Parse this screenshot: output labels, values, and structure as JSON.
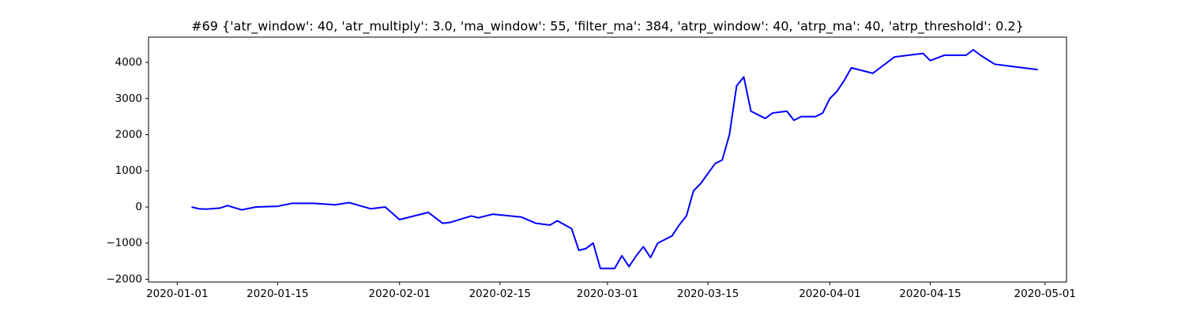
{
  "chart_data": {
    "type": "line",
    "title": "#69 {'atr_window': 40, 'atr_multiply': 3.0, 'ma_window': 55, 'filter_ma': 384, 'atrp_window': 40, 'atrp_ma': 40, 'atrp_threshold': 0.2}",
    "x": [
      "2020-01-03",
      "2020-01-04",
      "2020-01-05",
      "2020-01-07",
      "2020-01-08",
      "2020-01-10",
      "2020-01-12",
      "2020-01-15",
      "2020-01-17",
      "2020-01-20",
      "2020-01-23",
      "2020-01-25",
      "2020-01-28",
      "2020-01-30",
      "2020-02-01",
      "2020-02-04",
      "2020-02-05",
      "2020-02-07",
      "2020-02-08",
      "2020-02-11",
      "2020-02-12",
      "2020-02-14",
      "2020-02-18",
      "2020-02-20",
      "2020-02-22",
      "2020-02-23",
      "2020-02-25",
      "2020-02-26",
      "2020-02-27",
      "2020-02-28",
      "2020-02-29",
      "2020-03-02",
      "2020-03-03",
      "2020-03-04",
      "2020-03-05",
      "2020-03-06",
      "2020-03-07",
      "2020-03-08",
      "2020-03-10",
      "2020-03-11",
      "2020-03-12",
      "2020-03-13",
      "2020-03-14",
      "2020-03-16",
      "2020-03-17",
      "2020-03-18",
      "2020-03-19",
      "2020-03-20",
      "2020-03-21",
      "2020-03-23",
      "2020-03-24",
      "2020-03-26",
      "2020-03-27",
      "2020-03-28",
      "2020-03-30",
      "2020-03-31",
      "2020-04-01",
      "2020-04-02",
      "2020-04-03",
      "2020-04-04",
      "2020-04-07",
      "2020-04-10",
      "2020-04-14",
      "2020-04-15",
      "2020-04-17",
      "2020-04-20",
      "2020-04-21",
      "2020-04-22",
      "2020-04-24",
      "2020-04-26",
      "2020-04-28",
      "2020-04-30"
    ],
    "series": [
      {
        "color": "#0000ff",
        "values": [
          0,
          -50,
          -60,
          -30,
          40,
          -80,
          0,
          20,
          100,
          100,
          60,
          120,
          -50,
          0,
          -350,
          -200,
          -150,
          -450,
          -430,
          -250,
          -300,
          -200,
          -280,
          -450,
          -500,
          -380,
          -600,
          -1200,
          -1150,
          -1000,
          -1700,
          -1700,
          -1350,
          -1650,
          -1350,
          -1100,
          -1400,
          -1000,
          -800,
          -500,
          -250,
          450,
          650,
          1200,
          1300,
          2000,
          3350,
          3600,
          2650,
          2450,
          2600,
          2650,
          2400,
          2500,
          2500,
          2600,
          3000,
          3200,
          3500,
          3850,
          3700,
          4150,
          4250,
          4050,
          4200,
          4200,
          4350,
          4200,
          3950,
          3900,
          3850,
          3800
        ]
      }
    ],
    "xlim": [
      "2019-12-28",
      "2020-05-04"
    ],
    "xticks": [
      "2020-01-01",
      "2020-01-15",
      "2020-02-01",
      "2020-02-15",
      "2020-03-01",
      "2020-03-15",
      "2020-04-01",
      "2020-04-15",
      "2020-05-01"
    ],
    "ylim": [
      -2077,
      4700
    ],
    "yticks": [
      {
        "value": -2000,
        "label": "−2000"
      },
      {
        "value": -1000,
        "label": "−1000"
      },
      0,
      1000,
      2000,
      3000,
      4000
    ],
    "grid": false
  }
}
